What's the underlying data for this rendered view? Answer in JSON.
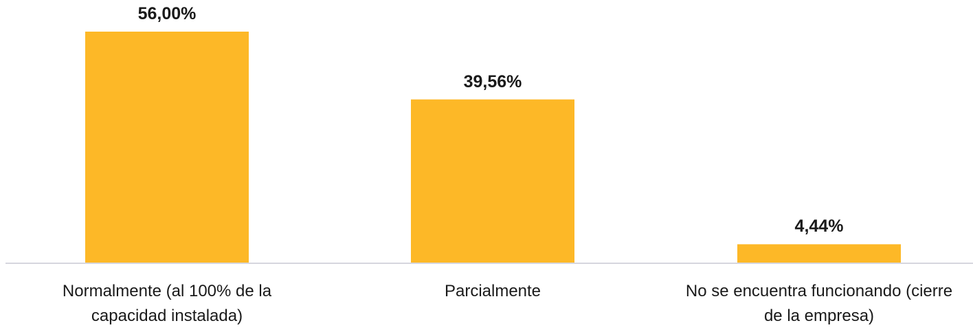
{
  "chart_data": {
    "type": "bar",
    "categories": [
      "Normalmente (al 100% de la capacidad instalada)",
      "Parcialmente",
      "No se encuentra funcionando (cierre de la empresa)"
    ],
    "values": [
      56.0,
      39.56,
      4.44
    ],
    "value_labels": [
      "56,00%",
      "39,56%",
      "4,44%"
    ],
    "color": "#FDB827"
  }
}
